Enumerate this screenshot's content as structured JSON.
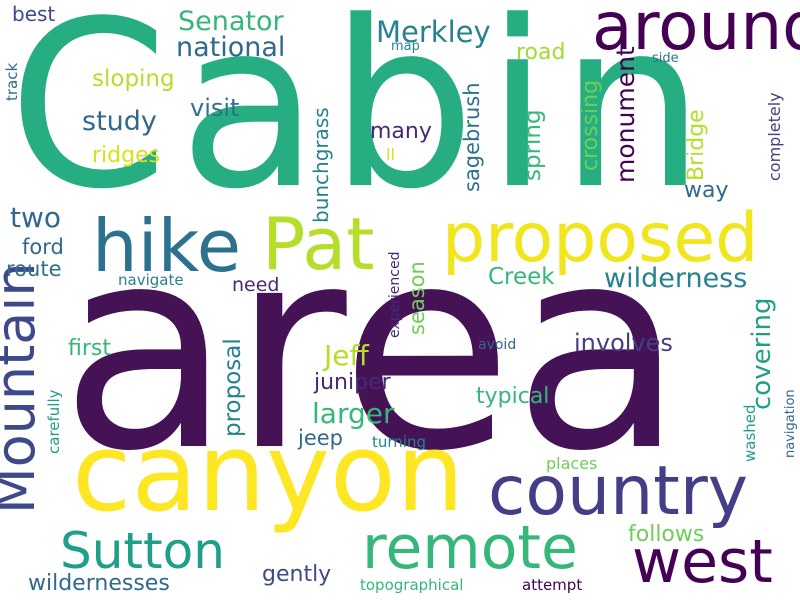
{
  "palette": {
    "purple": "#440154",
    "indigo": "#482878",
    "blue": "#3e4989",
    "slate": "#31688e",
    "teal": "#26828e",
    "sea": "#1f9e89",
    "green": "#35b779",
    "lime": "#6ece58",
    "yellowgreen": "#b5de2b",
    "yellow": "#fde725"
  },
  "words": {
    "cabin": "Cabin",
    "area": "area",
    "canyon": "canyon",
    "proposed": "proposed",
    "around": "around",
    "hike": "hike",
    "pat": "Pat",
    "mountain": "Mountain",
    "country": "country",
    "remote": "remote",
    "sutton": "Sutton",
    "west": "west",
    "senator": "Senator",
    "national": "national",
    "merkley": "Merkley",
    "road": "road",
    "sloping": "sloping",
    "visit": "visit",
    "study": "study",
    "ridges": "ridges",
    "best": "best",
    "track": "track",
    "map": "map",
    "side": "side",
    "monument": "monument",
    "completely": "completely",
    "many": "many",
    "ll": "ll",
    "bridge": "Bridge",
    "crossing": "crossing",
    "spring": "spring",
    "sagebrush": "sagebrush",
    "bunchgrass": "bunchgrass",
    "way": "way",
    "two": "two",
    "ford": "ford",
    "route": "route",
    "navigate": "navigate",
    "need": "need",
    "experienced": "experienced",
    "season": "season",
    "creek": "Creek",
    "wilderness": "wilderness",
    "proposal": "proposal",
    "first": "first",
    "jeff": "Jeff",
    "juniper": "juniper",
    "larger": "larger",
    "jeep": "jeep",
    "turning": "turning",
    "typical": "typical",
    "involves": "involves",
    "avoid": "avoid",
    "covering": "covering",
    "washed": "washed",
    "navigation": "navigation",
    "carefully": "carefully",
    "places": "places",
    "follows": "follows",
    "wildernesses": "wildernesses",
    "gently": "gently",
    "topographical": "topographical",
    "attempt": "attempt"
  }
}
